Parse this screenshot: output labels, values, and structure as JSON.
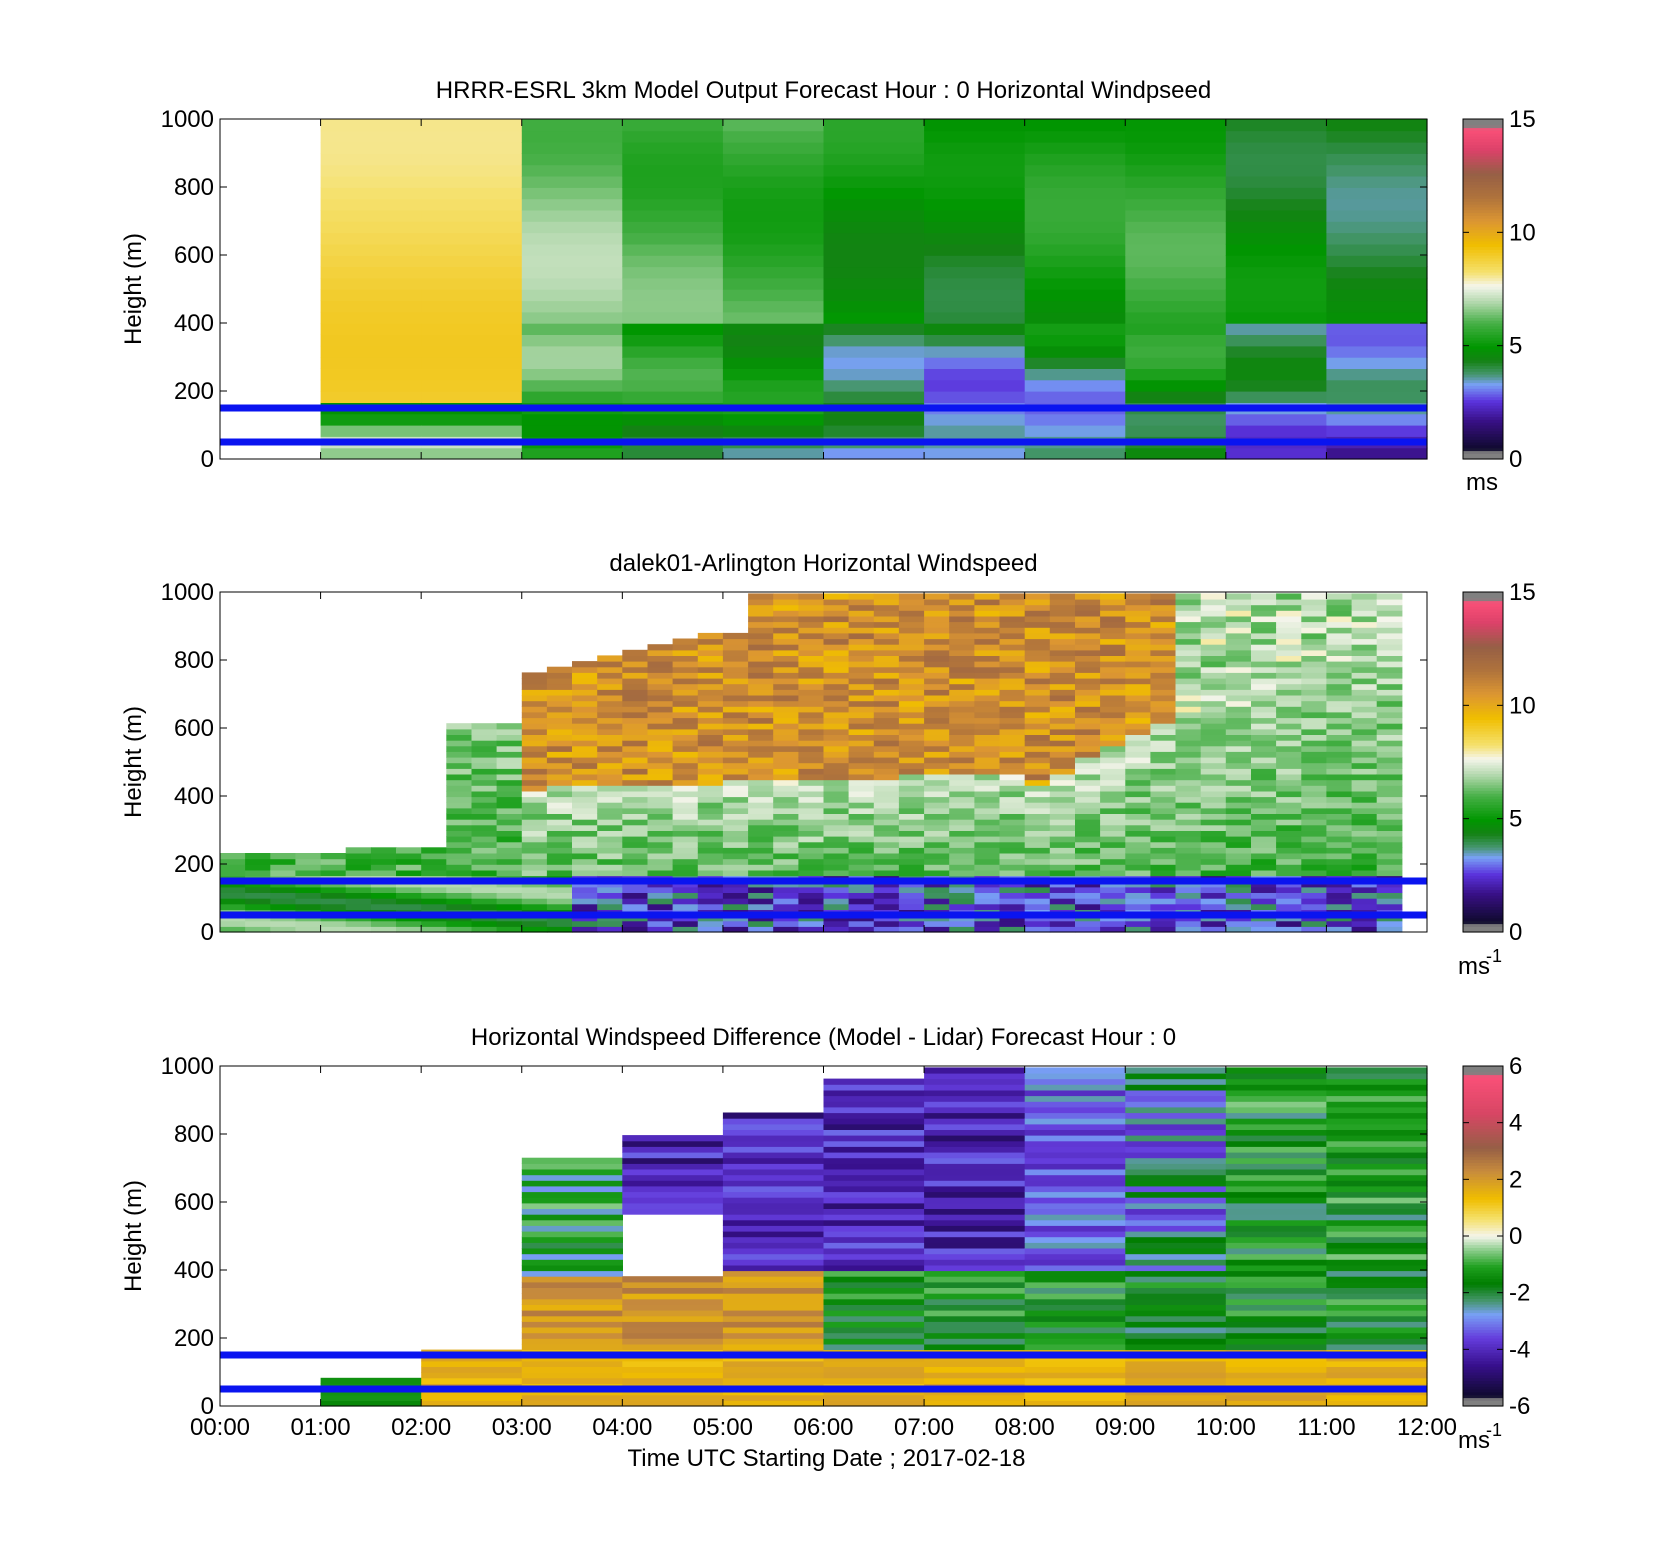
{
  "chart_data": [
    {
      "type": "heatmap",
      "title": "HRRR-ESRL 3km Model Output   Forecast Hour : 0 Horizontal Windpseed",
      "ylabel": "Height (m)",
      "xlabel": "",
      "xlim": [
        0,
        12
      ],
      "ylim": [
        0,
        1000
      ],
      "yticks": [
        "0",
        "200",
        "400",
        "600",
        "800",
        "1000"
      ],
      "colorbar": {
        "range": [
          0,
          15
        ],
        "ticks": [
          "0",
          "5",
          "10",
          "15"
        ],
        "unit": "ms",
        "unit_sup": "",
        "scale": "speed"
      },
      "reference_lines_m": [
        50,
        150
      ],
      "mode": "model",
      "x_start_hour": 1
    },
    {
      "type": "heatmap",
      "title": "dalek01-Arlington  Horizontal Windspeed",
      "ylabel": "Height (m)",
      "xlabel": "",
      "xlim": [
        0,
        12
      ],
      "ylim": [
        0,
        1000
      ],
      "yticks": [
        "0",
        "200",
        "400",
        "600",
        "800",
        "1000"
      ],
      "colorbar": {
        "range": [
          0,
          15
        ],
        "ticks": [
          "0",
          "5",
          "10",
          "15"
        ],
        "unit": "ms",
        "unit_sup": "-1",
        "scale": "speed"
      },
      "reference_lines_m": [
        50,
        150
      ],
      "mode": "lidar",
      "x_end_hour": 11.85
    },
    {
      "type": "heatmap",
      "title": "Horizontal Windspeed Difference (Model - Lidar) Forecast Hour : 0",
      "ylabel": "Height (m)",
      "xlabel": "Time UTC  Starting Date ; 2017-02-18",
      "xlim": [
        0,
        12
      ],
      "ylim": [
        0,
        1000
      ],
      "xticks": [
        "00:00",
        "01:00",
        "02:00",
        "03:00",
        "04:00",
        "05:00",
        "06:00",
        "07:00",
        "08:00",
        "09:00",
        "10:00",
        "11:00",
        "12:00"
      ],
      "yticks": [
        "0",
        "200",
        "400",
        "600",
        "800",
        "1000"
      ],
      "colorbar": {
        "range": [
          -6,
          6
        ],
        "ticks": [
          "-6",
          "-4",
          "-2",
          "0",
          "2",
          "4",
          "6"
        ],
        "unit": "ms",
        "unit_sup": "-1",
        "scale": "difference"
      },
      "reference_lines_m": [
        50,
        150
      ],
      "mode": "diff"
    }
  ]
}
